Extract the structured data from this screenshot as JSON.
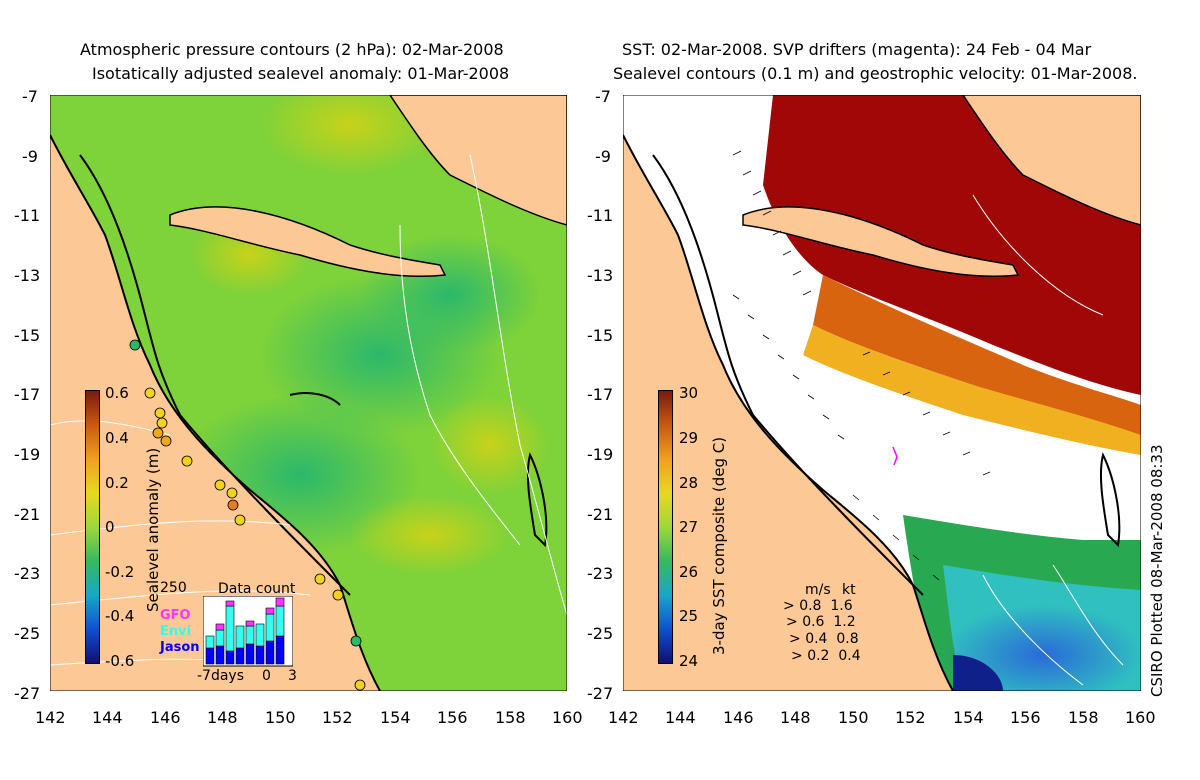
{
  "left_panel": {
    "title_line1": "Atmospheric pressure contours (2 hPa): 02-Mar-2008",
    "title_line2": "Isotatically adjusted sealevel anomaly: 01-Mar-2008",
    "colorbar_label": "Sealevel anomaly (m)",
    "colorbar_ticks": [
      "0.6",
      "0.4",
      "0.2",
      "0",
      "-0.2",
      "-0.4",
      "-0.6"
    ],
    "data_count": {
      "title": "Data count",
      "ymax": "250",
      "series": [
        {
          "name": "GFO",
          "color": "#ff33ff"
        },
        {
          "name": "Envi",
          "color": "#33ffee"
        },
        {
          "name": "Jason",
          "color": "#0000ff"
        }
      ],
      "x_ticks": [
        "-7days",
        "0",
        "3"
      ]
    }
  },
  "right_panel": {
    "title_line1": "SST: 02-Mar-2008. SVP drifters (magenta): 24 Feb - 04 Mar",
    "title_line2": "Sealevel contours (0.1 m) and geostrophic velocity: 01-Mar-2008.",
    "colorbar_label": "3-day SST composite (deg C)",
    "colorbar_ticks": [
      "30",
      "29",
      "28",
      "27",
      "26",
      "25",
      "24"
    ],
    "velocity_key": {
      "units": [
        "m/s",
        "kt"
      ],
      "rows": [
        [
          "0.8",
          "1.6"
        ],
        [
          "0.6",
          "1.2"
        ],
        [
          "0.4",
          "0.8"
        ],
        [
          "0.2",
          "0.4"
        ]
      ]
    },
    "credit": "CSIRO Plotted 08-Mar-2008 08:33"
  },
  "axes": {
    "lat_ticks": [
      "-7",
      "-9",
      "-11",
      "-13",
      "-15",
      "-17",
      "-19",
      "-21",
      "-23",
      "-25",
      "-27"
    ],
    "lon_ticks": [
      "142",
      "144",
      "146",
      "148",
      "150",
      "152",
      "154",
      "156",
      "158",
      "160"
    ]
  },
  "colors": {
    "land": "#fcc896",
    "coast": "#000000",
    "contour": "#ffffff"
  }
}
